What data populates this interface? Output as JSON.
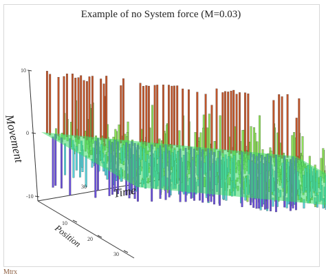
{
  "chart_data": {
    "type": "3d-bar-surface",
    "title": "Example of no System force (M=0.03)",
    "zlabel": "Movement",
    "xlabel": "Time",
    "ylabel": "Position",
    "zlim": [
      -10,
      10
    ],
    "z_ticks": [
      "10",
      "0",
      "-10"
    ],
    "time_ticks": [
      "10",
      "20",
      "30"
    ],
    "position_ticks": [
      "10",
      "20",
      "30"
    ],
    "colors": {
      "high": "#c0552a",
      "mid": "#8fe05a",
      "surface": "#3ddc6a",
      "low": "#6a50d8",
      "cyan": "#56d0d8"
    },
    "grid_dims": {
      "time_steps": 30,
      "positions": 32
    },
    "values_note": ""
  },
  "caption": "Mtrx"
}
